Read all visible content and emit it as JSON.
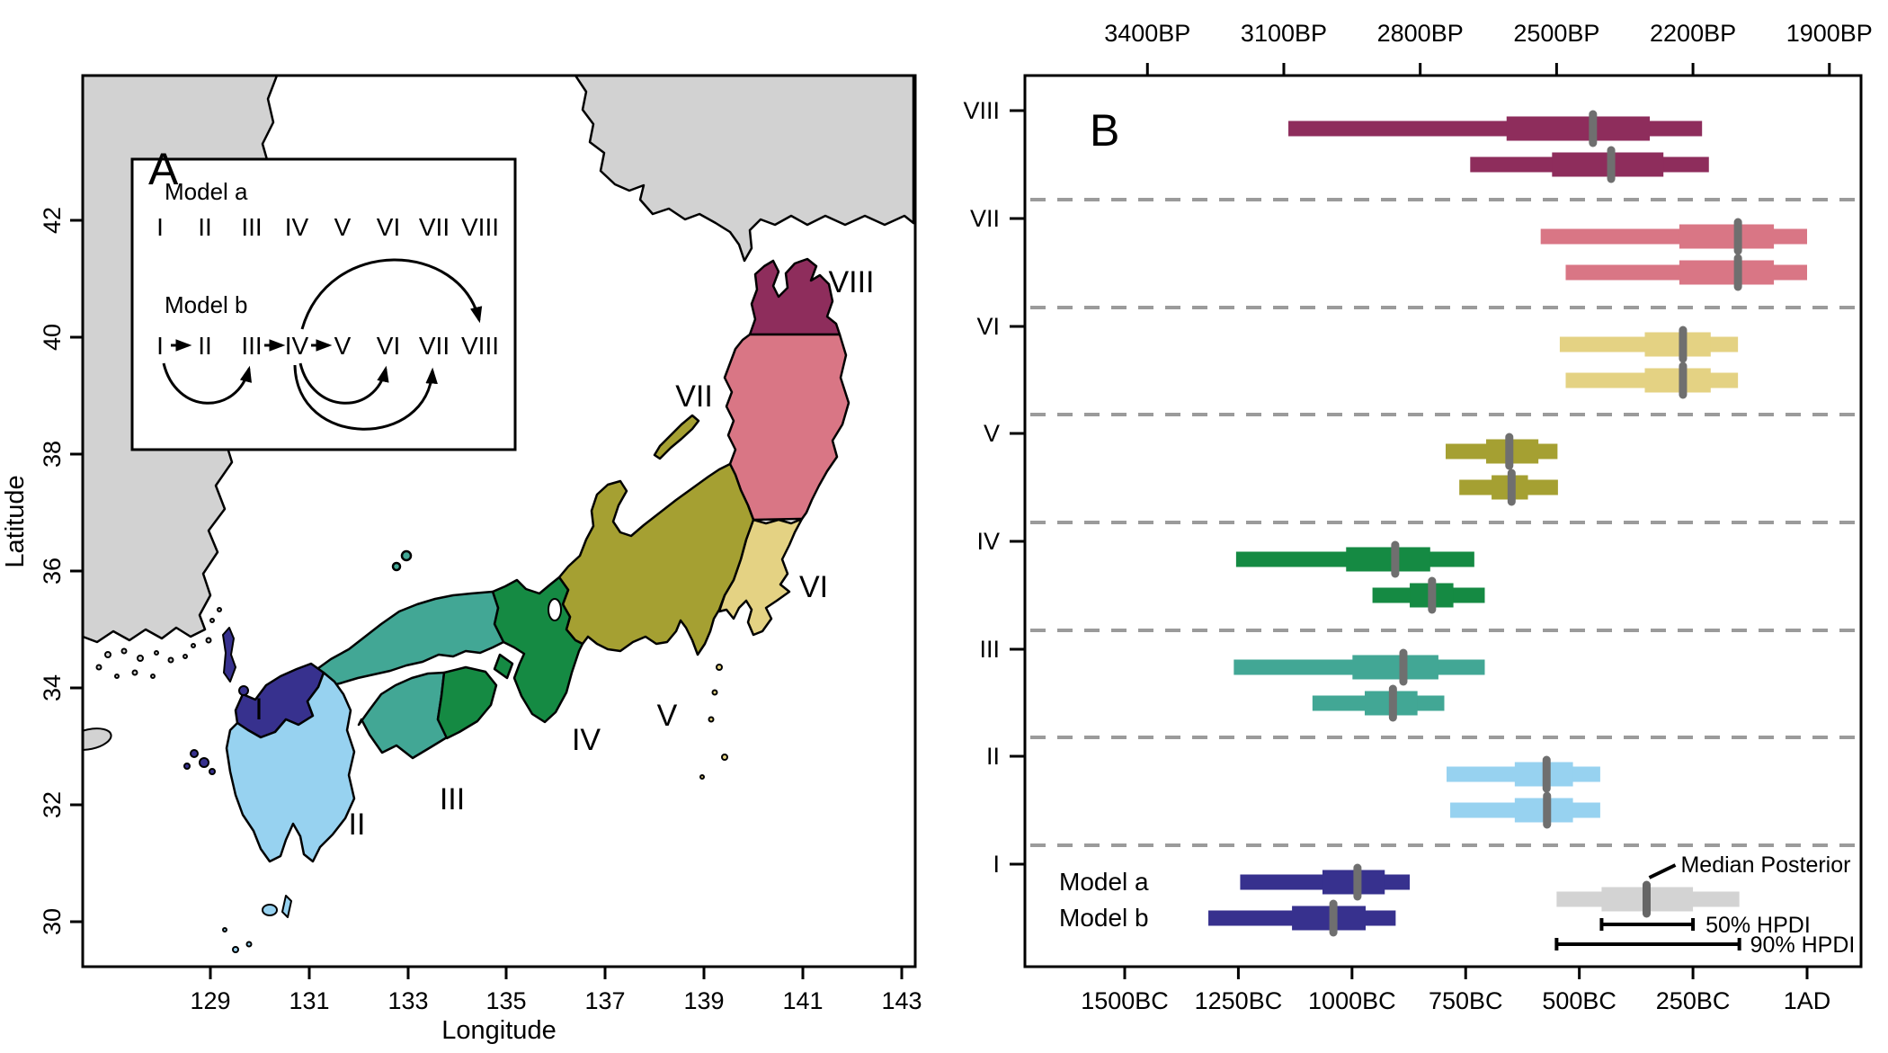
{
  "figure": {
    "panel_a_label": "A",
    "panel_b_label": "B"
  },
  "map": {
    "xlabel": "Longitude",
    "ylabel": "Latitude",
    "x_ticks": [
      "129",
      "131",
      "133",
      "135",
      "137",
      "139",
      "141",
      "143"
    ],
    "y_ticks": [
      "42",
      "40",
      "38",
      "36",
      "34",
      "32",
      "30"
    ],
    "region_labels": [
      "I",
      "II",
      "III",
      "IV",
      "V",
      "VI",
      "VII",
      "VIII"
    ],
    "inset": {
      "model_a_label": "Model a",
      "model_b_label": "Model b",
      "sequence": [
        "I",
        "II",
        "III",
        "IV",
        "V",
        "VI",
        "VII",
        "VIII"
      ],
      "model_b_straight_arrows": [
        "I->II",
        "III->IV",
        "IV->V"
      ],
      "model_b_arcs_below": [
        "I->III",
        "IV->VI",
        "IV->VII"
      ],
      "model_b_arcs_above": [
        "IV->VIII"
      ]
    },
    "colors": {
      "I": "#37318e",
      "II": "#97d2f0",
      "III": "#42a795",
      "IV": "#158a43",
      "V": "#a5a032",
      "VI": "#e4d283",
      "VII": "#d97685",
      "VIII": "#8e2d5c",
      "land_other": "#d2d2d2",
      "coast_stroke": "#000000"
    }
  },
  "chart_data": {
    "type": "interval",
    "title": "",
    "description": "Median posterior with 50% and 90% HPDI of arrival dates per region (I-VIII) under Model a and Model b; years negative = BC, positive = AD",
    "regions": [
      "VIII",
      "VII",
      "VI",
      "V",
      "IV",
      "III",
      "II",
      "I"
    ],
    "top_axis_labels": [
      "3400BP",
      "3100BP",
      "2800BP",
      "2500BP",
      "2200BP",
      "1900BP"
    ],
    "top_axis_years_bp": [
      3400,
      3100,
      2800,
      2500,
      2200,
      1900
    ],
    "bottom_axis_labels": [
      "1500BC",
      "1250BC",
      "1000BC",
      "750BC",
      "500BC",
      "250BC",
      "1AD"
    ],
    "bottom_axis_years": [
      -1500,
      -1250,
      -1000,
      -750,
      -500,
      -250,
      1
    ],
    "x_domain_years": [
      -1718,
      119
    ],
    "grid": "dashed horizontal separators between regions",
    "series": [
      {
        "region": "VIII",
        "model": "a",
        "hpdi90": [
          -1140,
          -230
        ],
        "hpdi50": [
          -660,
          -345
        ],
        "median": -470
      },
      {
        "region": "VIII",
        "model": "b",
        "hpdi90": [
          -740,
          -215
        ],
        "hpdi50": [
          -560,
          -315
        ],
        "median": -430
      },
      {
        "region": "VII",
        "model": "a",
        "hpdi90": [
          -585,
          1
        ],
        "hpdi50": [
          -280,
          -72
        ],
        "median": -151
      },
      {
        "region": "VII",
        "model": "b",
        "hpdi90": [
          -530,
          1
        ],
        "hpdi50": [
          -280,
          -72
        ],
        "median": -151
      },
      {
        "region": "VI",
        "model": "a",
        "hpdi90": [
          -543,
          -151
        ],
        "hpdi50": [
          -356,
          -211
        ],
        "median": -272
      },
      {
        "region": "VI",
        "model": "b",
        "hpdi90": [
          -530,
          -151
        ],
        "hpdi50": [
          -356,
          -211
        ],
        "median": -272
      },
      {
        "region": "V",
        "model": "a",
        "hpdi90": [
          -794,
          -548
        ],
        "hpdi50": [
          -705,
          -590
        ],
        "median": -654
      },
      {
        "region": "V",
        "model": "b",
        "hpdi90": [
          -764,
          -547
        ],
        "hpdi50": [
          -693,
          -613
        ],
        "median": -649
      },
      {
        "region": "IV",
        "model": "a",
        "hpdi90": [
          -1255,
          -731
        ],
        "hpdi50": [
          -1013,
          -828
        ],
        "median": -905
      },
      {
        "region": "IV",
        "model": "b",
        "hpdi90": [
          -955,
          -708
        ],
        "hpdi50": [
          -873,
          -777
        ],
        "median": -824
      },
      {
        "region": "III",
        "model": "a",
        "hpdi90": [
          -1260,
          -708
        ],
        "hpdi50": [
          -999,
          -810
        ],
        "median": -887
      },
      {
        "region": "III",
        "model": "b",
        "hpdi90": [
          -1087,
          -797
        ],
        "hpdi50": [
          -972,
          -856
        ],
        "median": -910
      },
      {
        "region": "II",
        "model": "a",
        "hpdi90": [
          -792,
          -454
        ],
        "hpdi50": [
          -642,
          -514
        ],
        "median": -572
      },
      {
        "region": "II",
        "model": "b",
        "hpdi90": [
          -784,
          -454
        ],
        "hpdi50": [
          -642,
          -514
        ],
        "median": -571
      },
      {
        "region": "I",
        "model": "a",
        "hpdi90": [
          -1246,
          -873
        ],
        "hpdi50": [
          -1065,
          -928
        ],
        "median": -988
      },
      {
        "region": "I",
        "model": "b",
        "hpdi90": [
          -1316,
          -904
        ],
        "hpdi50": [
          -1132,
          -970
        ],
        "median": -1041
      }
    ],
    "model_row_labels": {
      "a": "Model a",
      "b": "Model b"
    },
    "legend": {
      "median_label": "Median Posterior",
      "hpdi50_label": "50% HPDI",
      "hpdi90_label": "90% HPDI",
      "example": {
        "hpdi90": [
          -550,
          -148
        ],
        "hpdi50": [
          -451,
          -250
        ],
        "median": -352
      },
      "example_color": "#d3d3d3",
      "example_median_color": "#666666"
    },
    "colors": {
      "VIII": "#8e2d5c",
      "VII": "#d97685",
      "VI": "#e4d283",
      "V": "#a5a032",
      "IV": "#158a43",
      "III": "#42a795",
      "II": "#97d2f0",
      "I": "#37318e",
      "median_marker": "#6f6f6f",
      "separator_dash": "#9b9b9b"
    }
  }
}
